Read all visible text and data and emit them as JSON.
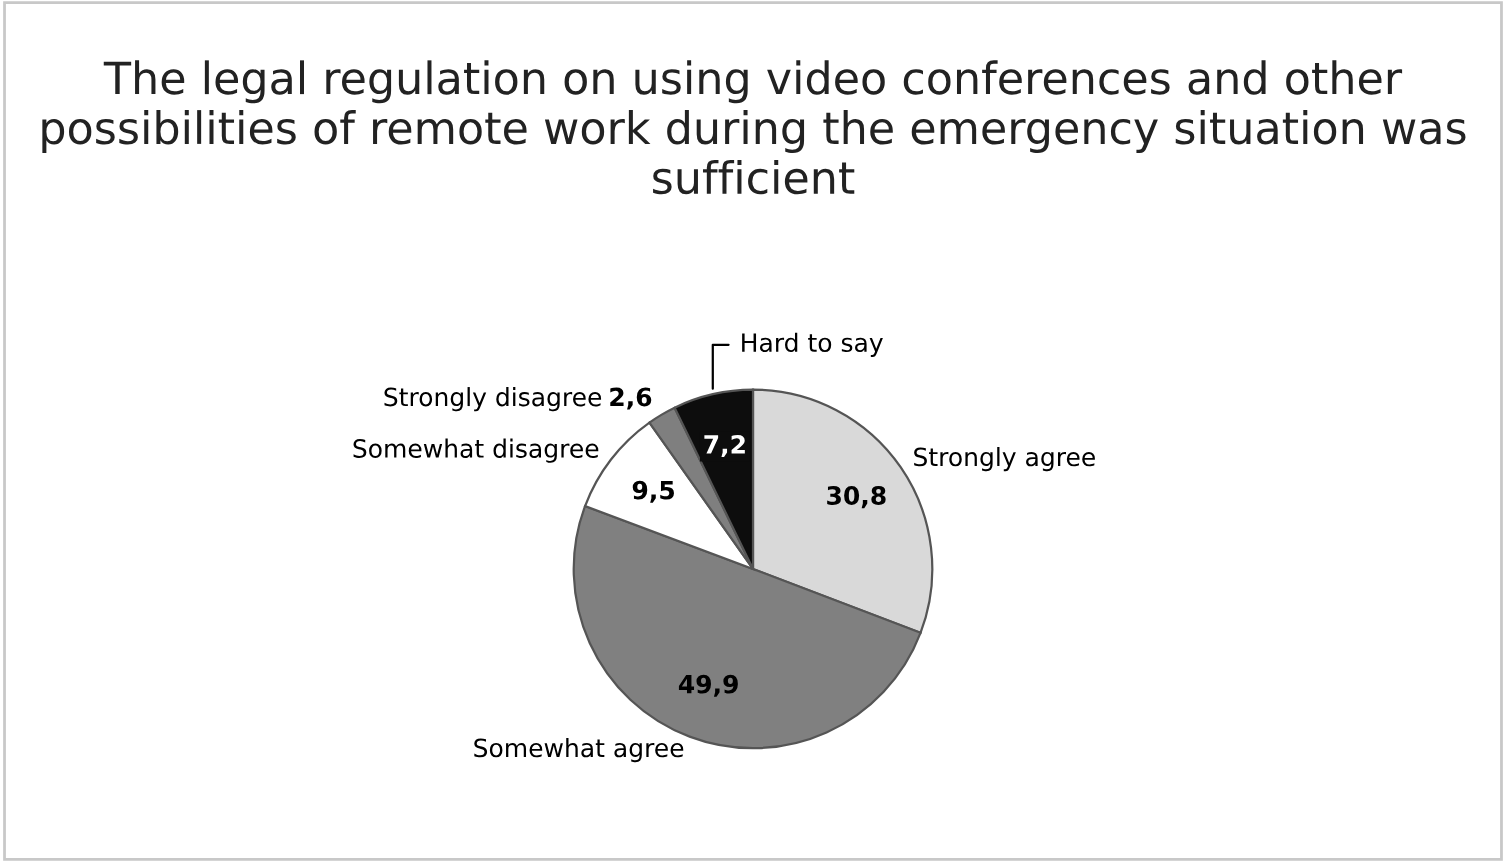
{
  "chart_data": {
    "type": "pie",
    "title": "The legal regulation on using video conferences and other possibilities of remote work during the emergency situation was sufficient",
    "categories": [
      "Strongly agree",
      "Somewhat agree",
      "Somewhat disagree",
      "Strongly disagree",
      "Hard to say"
    ],
    "values": [
      30.8,
      49.9,
      9.5,
      2.6,
      7.2
    ],
    "value_labels": [
      "30,8",
      "49,9",
      "9,5",
      "2,6",
      "7,2"
    ],
    "colors": [
      "#d9d9d9",
      "#808080",
      "#ffffff",
      "#7f7f7f",
      "#0d0d0d"
    ],
    "legend": false
  }
}
